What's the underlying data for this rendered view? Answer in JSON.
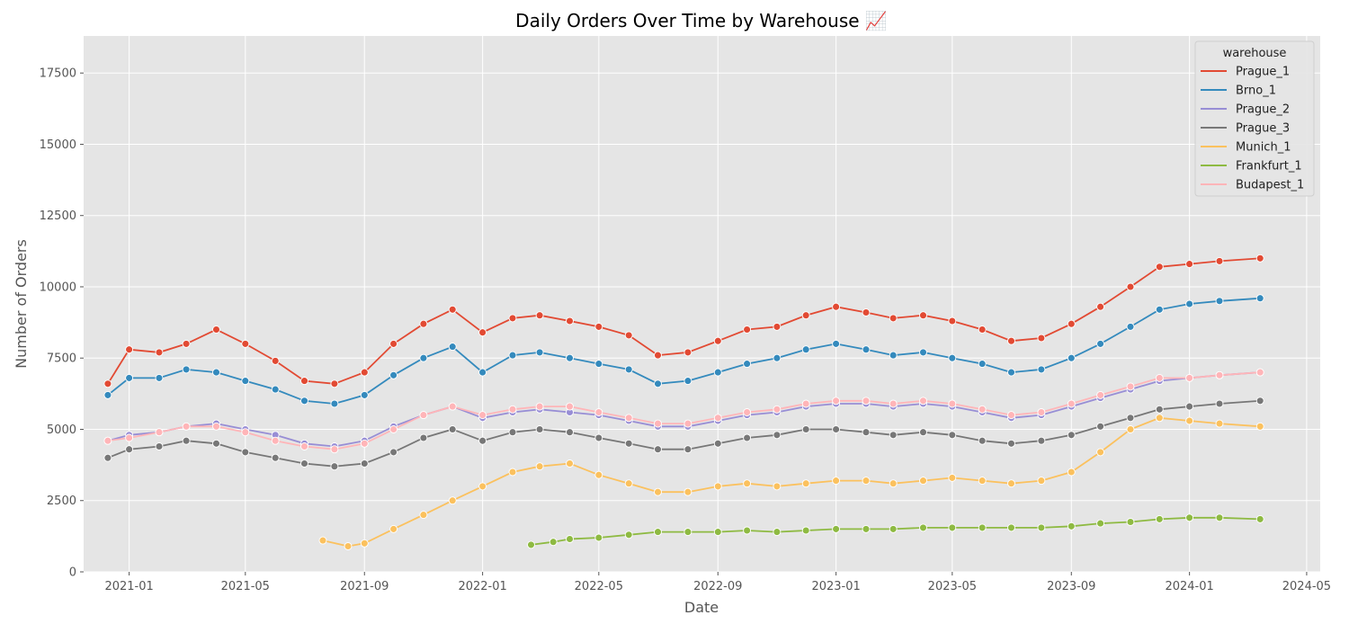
{
  "chart_data": {
    "type": "line",
    "title": "Daily Orders Over Time by Warehouse 📈",
    "xlabel": "Date",
    "ylabel": "Number of Orders",
    "xlim": [
      "2020-11-15",
      "2024-05-15"
    ],
    "ylim": [
      0,
      18800
    ],
    "x_ticks": [
      "2021-01",
      "2021-05",
      "2021-09",
      "2022-01",
      "2022-05",
      "2022-09",
      "2023-01",
      "2023-05",
      "2023-09",
      "2024-01",
      "2024-05"
    ],
    "y_ticks": [
      0,
      2500,
      5000,
      7500,
      10000,
      12500,
      15000,
      17500
    ],
    "grid": true,
    "legend": {
      "title": "warehouse",
      "placement": "top-right"
    },
    "series": [
      {
        "name": "Prague_1",
        "color": "#E24A33",
        "points": [
          [
            "2020-12-10",
            6600
          ],
          [
            "2021-01-01",
            7800
          ],
          [
            "2021-02-01",
            7700
          ],
          [
            "2021-03-01",
            8000
          ],
          [
            "2021-04-01",
            8500
          ],
          [
            "2021-05-01",
            8000
          ],
          [
            "2021-06-01",
            7400
          ],
          [
            "2021-07-01",
            6700
          ],
          [
            "2021-08-01",
            6600
          ],
          [
            "2021-09-01",
            7000
          ],
          [
            "2021-10-01",
            8000
          ],
          [
            "2021-11-01",
            8700
          ],
          [
            "2021-12-01",
            9200
          ],
          [
            "2022-01-01",
            8400
          ],
          [
            "2022-02-01",
            8900
          ],
          [
            "2022-03-01",
            9000
          ],
          [
            "2022-04-01",
            8800
          ],
          [
            "2022-05-01",
            8600
          ],
          [
            "2022-06-01",
            8300
          ],
          [
            "2022-07-01",
            7600
          ],
          [
            "2022-08-01",
            7700
          ],
          [
            "2022-09-01",
            8100
          ],
          [
            "2022-10-01",
            8500
          ],
          [
            "2022-11-01",
            8600
          ],
          [
            "2022-12-01",
            9000
          ],
          [
            "2023-01-01",
            9300
          ],
          [
            "2023-02-01",
            9100
          ],
          [
            "2023-03-01",
            8900
          ],
          [
            "2023-04-01",
            9000
          ],
          [
            "2023-05-01",
            8800
          ],
          [
            "2023-06-01",
            8500
          ],
          [
            "2023-07-01",
            8100
          ],
          [
            "2023-08-01",
            8200
          ],
          [
            "2023-09-01",
            8700
          ],
          [
            "2023-10-01",
            9300
          ],
          [
            "2023-11-01",
            10000
          ],
          [
            "2023-12-01",
            10700
          ],
          [
            "2024-01-01",
            10800
          ],
          [
            "2024-02-01",
            10900
          ],
          [
            "2024-03-14",
            11000
          ]
        ]
      },
      {
        "name": "Brno_1",
        "color": "#348ABD",
        "points": [
          [
            "2020-12-10",
            6200
          ],
          [
            "2021-01-01",
            6800
          ],
          [
            "2021-02-01",
            6800
          ],
          [
            "2021-03-01",
            7100
          ],
          [
            "2021-04-01",
            7000
          ],
          [
            "2021-05-01",
            6700
          ],
          [
            "2021-06-01",
            6400
          ],
          [
            "2021-07-01",
            6000
          ],
          [
            "2021-08-01",
            5900
          ],
          [
            "2021-09-01",
            6200
          ],
          [
            "2021-10-01",
            6900
          ],
          [
            "2021-11-01",
            7500
          ],
          [
            "2021-12-01",
            7900
          ],
          [
            "2022-01-01",
            7000
          ],
          [
            "2022-02-01",
            7600
          ],
          [
            "2022-03-01",
            7700
          ],
          [
            "2022-04-01",
            7500
          ],
          [
            "2022-05-01",
            7300
          ],
          [
            "2022-06-01",
            7100
          ],
          [
            "2022-07-01",
            6600
          ],
          [
            "2022-08-01",
            6700
          ],
          [
            "2022-09-01",
            7000
          ],
          [
            "2022-10-01",
            7300
          ],
          [
            "2022-11-01",
            7500
          ],
          [
            "2022-12-01",
            7800
          ],
          [
            "2023-01-01",
            8000
          ],
          [
            "2023-02-01",
            7800
          ],
          [
            "2023-03-01",
            7600
          ],
          [
            "2023-04-01",
            7700
          ],
          [
            "2023-05-01",
            7500
          ],
          [
            "2023-06-01",
            7300
          ],
          [
            "2023-07-01",
            7000
          ],
          [
            "2023-08-01",
            7100
          ],
          [
            "2023-09-01",
            7500
          ],
          [
            "2023-10-01",
            8000
          ],
          [
            "2023-11-01",
            8600
          ],
          [
            "2023-12-01",
            9200
          ],
          [
            "2024-01-01",
            9400
          ],
          [
            "2024-02-01",
            9500
          ],
          [
            "2024-03-14",
            9600
          ]
        ]
      },
      {
        "name": "Prague_2",
        "color": "#988ED5",
        "points": [
          [
            "2020-12-10",
            4600
          ],
          [
            "2021-01-01",
            4800
          ],
          [
            "2021-02-01",
            4900
          ],
          [
            "2021-03-01",
            5100
          ],
          [
            "2021-04-01",
            5200
          ],
          [
            "2021-05-01",
            5000
          ],
          [
            "2021-06-01",
            4800
          ],
          [
            "2021-07-01",
            4500
          ],
          [
            "2021-08-01",
            4400
          ],
          [
            "2021-09-01",
            4600
          ],
          [
            "2021-10-01",
            5100
          ],
          [
            "2021-11-01",
            5500
          ],
          [
            "2021-12-01",
            5800
          ],
          [
            "2022-01-01",
            5400
          ],
          [
            "2022-02-01",
            5600
          ],
          [
            "2022-03-01",
            5700
          ],
          [
            "2022-04-01",
            5600
          ],
          [
            "2022-05-01",
            5500
          ],
          [
            "2022-06-01",
            5300
          ],
          [
            "2022-07-01",
            5100
          ],
          [
            "2022-08-01",
            5100
          ],
          [
            "2022-09-01",
            5300
          ],
          [
            "2022-10-01",
            5500
          ],
          [
            "2022-11-01",
            5600
          ],
          [
            "2022-12-01",
            5800
          ],
          [
            "2023-01-01",
            5900
          ],
          [
            "2023-02-01",
            5900
          ],
          [
            "2023-03-01",
            5800
          ],
          [
            "2023-04-01",
            5900
          ],
          [
            "2023-05-01",
            5800
          ],
          [
            "2023-06-01",
            5600
          ],
          [
            "2023-07-01",
            5400
          ],
          [
            "2023-08-01",
            5500
          ],
          [
            "2023-09-01",
            5800
          ],
          [
            "2023-10-01",
            6100
          ],
          [
            "2023-11-01",
            6400
          ],
          [
            "2023-12-01",
            6700
          ],
          [
            "2024-01-01",
            6800
          ],
          [
            "2024-02-01",
            6900
          ],
          [
            "2024-03-14",
            7000
          ]
        ]
      },
      {
        "name": "Prague_3",
        "color": "#777777",
        "points": [
          [
            "2020-12-10",
            4000
          ],
          [
            "2021-01-01",
            4300
          ],
          [
            "2021-02-01",
            4400
          ],
          [
            "2021-03-01",
            4600
          ],
          [
            "2021-04-01",
            4500
          ],
          [
            "2021-05-01",
            4200
          ],
          [
            "2021-06-01",
            4000
          ],
          [
            "2021-07-01",
            3800
          ],
          [
            "2021-08-01",
            3700
          ],
          [
            "2021-09-01",
            3800
          ],
          [
            "2021-10-01",
            4200
          ],
          [
            "2021-11-01",
            4700
          ],
          [
            "2021-12-01",
            5000
          ],
          [
            "2022-01-01",
            4600
          ],
          [
            "2022-02-01",
            4900
          ],
          [
            "2022-03-01",
            5000
          ],
          [
            "2022-04-01",
            4900
          ],
          [
            "2022-05-01",
            4700
          ],
          [
            "2022-06-01",
            4500
          ],
          [
            "2022-07-01",
            4300
          ],
          [
            "2022-08-01",
            4300
          ],
          [
            "2022-09-01",
            4500
          ],
          [
            "2022-10-01",
            4700
          ],
          [
            "2022-11-01",
            4800
          ],
          [
            "2022-12-01",
            5000
          ],
          [
            "2023-01-01",
            5000
          ],
          [
            "2023-02-01",
            4900
          ],
          [
            "2023-03-01",
            4800
          ],
          [
            "2023-04-01",
            4900
          ],
          [
            "2023-05-01",
            4800
          ],
          [
            "2023-06-01",
            4600
          ],
          [
            "2023-07-01",
            4500
          ],
          [
            "2023-08-01",
            4600
          ],
          [
            "2023-09-01",
            4800
          ],
          [
            "2023-10-01",
            5100
          ],
          [
            "2023-11-01",
            5400
          ],
          [
            "2023-12-01",
            5700
          ],
          [
            "2024-01-01",
            5800
          ],
          [
            "2024-02-01",
            5900
          ],
          [
            "2024-03-14",
            6000
          ]
        ]
      },
      {
        "name": "Munich_1",
        "color": "#FBC15E",
        "points": [
          [
            "2021-07-20",
            1100
          ],
          [
            "2021-08-15",
            900
          ],
          [
            "2021-09-01",
            1000
          ],
          [
            "2021-10-01",
            1500
          ],
          [
            "2021-11-01",
            2000
          ],
          [
            "2021-12-01",
            2500
          ],
          [
            "2022-01-01",
            3000
          ],
          [
            "2022-02-01",
            3500
          ],
          [
            "2022-03-01",
            3700
          ],
          [
            "2022-04-01",
            3800
          ],
          [
            "2022-05-01",
            3400
          ],
          [
            "2022-06-01",
            3100
          ],
          [
            "2022-07-01",
            2800
          ],
          [
            "2022-08-01",
            2800
          ],
          [
            "2022-09-01",
            3000
          ],
          [
            "2022-10-01",
            3100
          ],
          [
            "2022-11-01",
            3000
          ],
          [
            "2022-12-01",
            3100
          ],
          [
            "2023-01-01",
            3200
          ],
          [
            "2023-02-01",
            3200
          ],
          [
            "2023-03-01",
            3100
          ],
          [
            "2023-04-01",
            3200
          ],
          [
            "2023-05-01",
            3300
          ],
          [
            "2023-06-01",
            3200
          ],
          [
            "2023-07-01",
            3100
          ],
          [
            "2023-08-01",
            3200
          ],
          [
            "2023-09-01",
            3500
          ],
          [
            "2023-10-01",
            4200
          ],
          [
            "2023-11-01",
            5000
          ],
          [
            "2023-12-01",
            5400
          ],
          [
            "2024-01-01",
            5300
          ],
          [
            "2024-02-01",
            5200
          ],
          [
            "2024-03-14",
            5100
          ]
        ]
      },
      {
        "name": "Frankfurt_1",
        "color": "#8EBA42",
        "points": [
          [
            "2022-02-20",
            950
          ],
          [
            "2022-03-15",
            1050
          ],
          [
            "2022-04-01",
            1150
          ],
          [
            "2022-05-01",
            1200
          ],
          [
            "2022-06-01",
            1300
          ],
          [
            "2022-07-01",
            1400
          ],
          [
            "2022-08-01",
            1400
          ],
          [
            "2022-09-01",
            1400
          ],
          [
            "2022-10-01",
            1450
          ],
          [
            "2022-11-01",
            1400
          ],
          [
            "2022-12-01",
            1450
          ],
          [
            "2023-01-01",
            1500
          ],
          [
            "2023-02-01",
            1500
          ],
          [
            "2023-03-01",
            1500
          ],
          [
            "2023-04-01",
            1550
          ],
          [
            "2023-05-01",
            1550
          ],
          [
            "2023-06-01",
            1550
          ],
          [
            "2023-07-01",
            1550
          ],
          [
            "2023-08-01",
            1550
          ],
          [
            "2023-09-01",
            1600
          ],
          [
            "2023-10-01",
            1700
          ],
          [
            "2023-11-01",
            1750
          ],
          [
            "2023-12-01",
            1850
          ],
          [
            "2024-01-01",
            1900
          ],
          [
            "2024-02-01",
            1900
          ],
          [
            "2024-03-14",
            1850
          ]
        ]
      },
      {
        "name": "Budapest_1",
        "color": "#FFB5B8",
        "points": [
          [
            "2020-12-10",
            4600
          ],
          [
            "2021-01-01",
            4700
          ],
          [
            "2021-02-01",
            4900
          ],
          [
            "2021-03-01",
            5100
          ],
          [
            "2021-04-01",
            5100
          ],
          [
            "2021-05-01",
            4900
          ],
          [
            "2021-06-01",
            4600
          ],
          [
            "2021-07-01",
            4400
          ],
          [
            "2021-08-01",
            4300
          ],
          [
            "2021-09-01",
            4500
          ],
          [
            "2021-10-01",
            5000
          ],
          [
            "2021-11-01",
            5500
          ],
          [
            "2021-12-01",
            5800
          ],
          [
            "2022-01-01",
            5500
          ],
          [
            "2022-02-01",
            5700
          ],
          [
            "2022-03-01",
            5800
          ],
          [
            "2022-04-01",
            5800
          ],
          [
            "2022-05-01",
            5600
          ],
          [
            "2022-06-01",
            5400
          ],
          [
            "2022-07-01",
            5200
          ],
          [
            "2022-08-01",
            5200
          ],
          [
            "2022-09-01",
            5400
          ],
          [
            "2022-10-01",
            5600
          ],
          [
            "2022-11-01",
            5700
          ],
          [
            "2022-12-01",
            5900
          ],
          [
            "2023-01-01",
            6000
          ],
          [
            "2023-02-01",
            6000
          ],
          [
            "2023-03-01",
            5900
          ],
          [
            "2023-04-01",
            6000
          ],
          [
            "2023-05-01",
            5900
          ],
          [
            "2023-06-01",
            5700
          ],
          [
            "2023-07-01",
            5500
          ],
          [
            "2023-08-01",
            5600
          ],
          [
            "2023-09-01",
            5900
          ],
          [
            "2023-10-01",
            6200
          ],
          [
            "2023-11-01",
            6500
          ],
          [
            "2023-12-01",
            6800
          ],
          [
            "2024-01-01",
            6800
          ],
          [
            "2024-02-01",
            6900
          ],
          [
            "2024-03-14",
            7000
          ]
        ]
      }
    ]
  }
}
